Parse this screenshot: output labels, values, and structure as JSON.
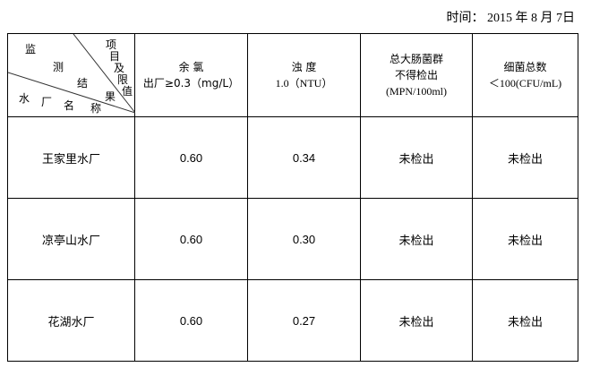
{
  "date": {
    "label": "时间：",
    "year": "2015",
    "year_unit": "年",
    "month": "8",
    "month_unit": "月",
    "day": "7",
    "day_unit": "日"
  },
  "corner": {
    "top_chars": [
      "监",
      "测",
      "结",
      "果"
    ],
    "right_chars": [
      "项",
      "目",
      "及",
      "限",
      "值"
    ],
    "bottom_chars": [
      "水",
      "厂",
      "名",
      "称"
    ]
  },
  "columns": [
    {
      "line1": "余 氯",
      "line2": "出厂≥0.3（mg/L）"
    },
    {
      "line1": "浊 度",
      "line2": "1.0（NTU）"
    },
    {
      "line1": "总大肠菌群",
      "line2": "不得检出",
      "line3": "(MPN/100ml)"
    },
    {
      "line1": "细菌总数",
      "line2": "＜100(CFU/mL)"
    }
  ],
  "rows": [
    {
      "name": "王家里水厂",
      "chlorine": "0.60",
      "turbidity": "0.34",
      "coliform": "未检出",
      "bacteria": "未检出"
    },
    {
      "name": "凉亭山水厂",
      "chlorine": "0.60",
      "turbidity": "0.30",
      "coliform": "未检出",
      "bacteria": "未检出"
    },
    {
      "name": "花湖水厂",
      "chlorine": "0.60",
      "turbidity": "0.27",
      "coliform": "未检出",
      "bacteria": "未检出"
    }
  ]
}
